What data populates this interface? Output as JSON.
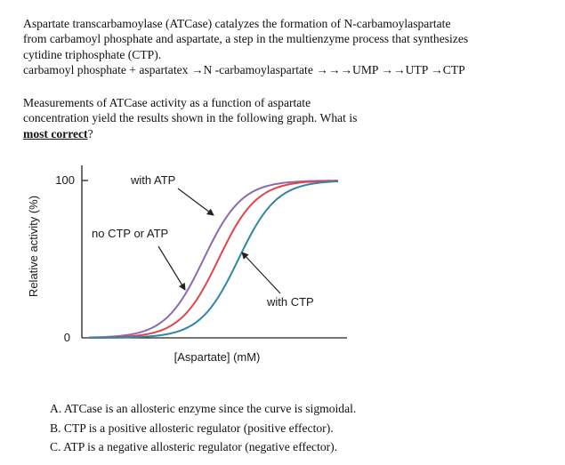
{
  "intro": {
    "line1": "Aspartate transcarbamoylase (ATCase) catalyzes the formation of N-carbamoylaspartate",
    "line2": "from carbamoyl phosphate and aspartate, a step in the multienzyme process that synthesizes",
    "line3": "cytidine triphosphate (CTP).",
    "line4": "carbamoyl phosphate + aspartatex →N -carbamoylaspartate →→→UMP →→UTP →CTP"
  },
  "question": {
    "line1": "Measurements of ATCase activity as a function of aspartate",
    "line2_prefix": "concentration yield the results shown in the following graph. What is",
    "emphasis": "most correct",
    "suffix": "?"
  },
  "graph": {
    "y_label": "Relative activity (%)",
    "x_label": "[Aspartate] (mM)",
    "tick_top": "100",
    "tick_bottom": "0",
    "annotations": {
      "with_atp": "with ATP",
      "no_ctp_or_atp": "no CTP or ATP",
      "with_ctp": "with CTP"
    }
  },
  "chart_data": {
    "type": "line",
    "title": "",
    "xlabel": "[Aspartate] (mM)",
    "ylabel": "Relative activity (%)",
    "x_ticks": [],
    "y_ticks": [
      0,
      100
    ],
    "ylim": [
      0,
      110
    ],
    "xlim": [
      0,
      1
    ],
    "grid": false,
    "series": [
      {
        "name": "with ATP",
        "color": "#8a6bb0",
        "midpoint": 0.46,
        "steepness": 13
      },
      {
        "name": "no CTP or ATP",
        "color": "#e0454a",
        "midpoint": 0.52,
        "steepness": 13
      },
      {
        "name": "with CTP",
        "color": "#2e86a8",
        "midpoint": 0.6,
        "steepness": 13
      }
    ]
  },
  "options": {
    "a": "A. ATCase is an allosteric enzyme since the curve is sigmoidal.",
    "b": "B. CTP is a positive allosteric regulator (positive effector).",
    "c": "C. ATP is a negative allosteric regulator (negative effector)."
  }
}
